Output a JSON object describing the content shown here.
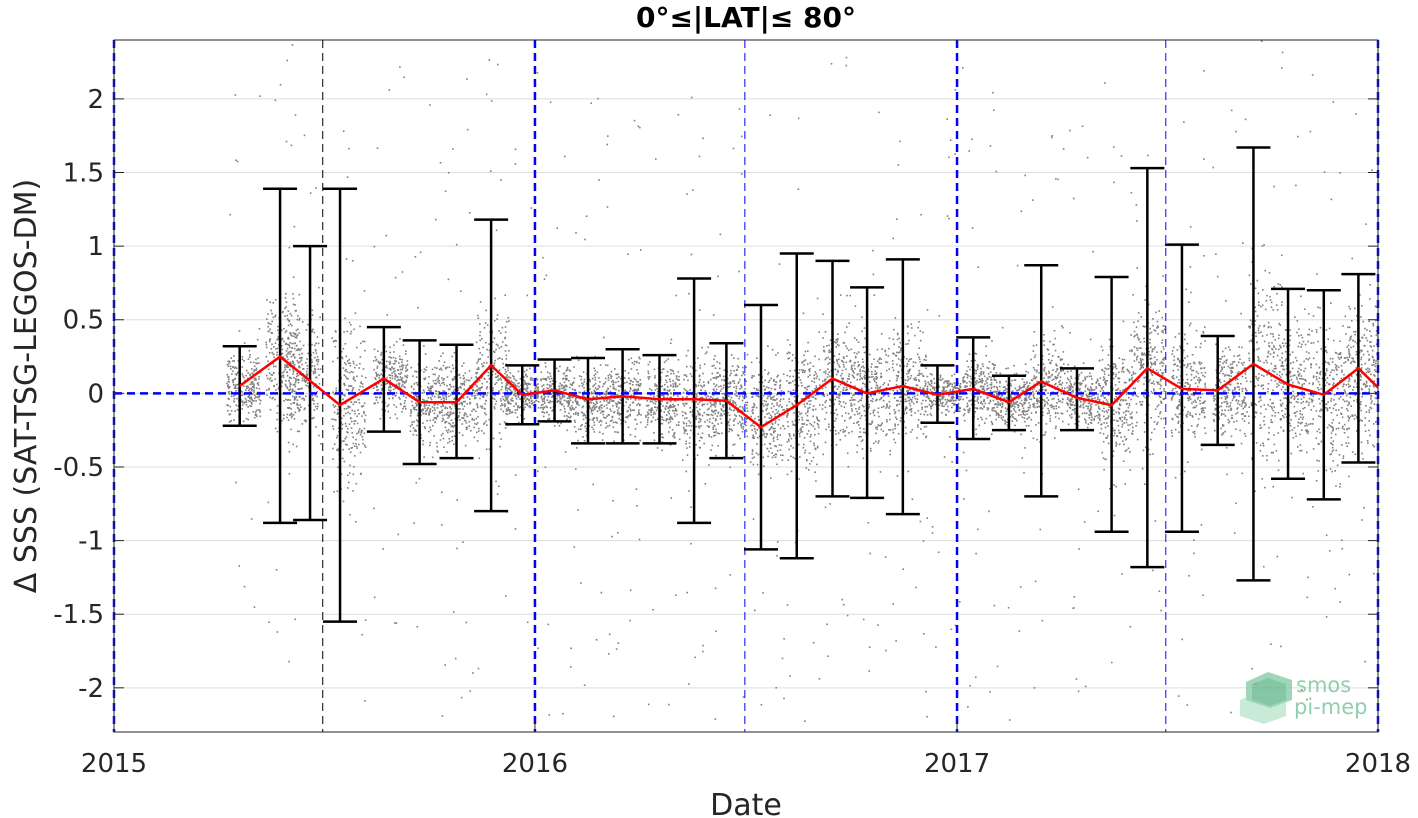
{
  "chart_data": {
    "type": "scatter",
    "title": "0°≤|LAT|≤ 80°",
    "xlabel": "Date",
    "ylabel": "Δ SSS (SAT-TSG-LEGOS-DM)",
    "xlim": [
      "2015-01-01",
      "2018-01-01"
    ],
    "ylim": [
      -2.3,
      2.4
    ],
    "grid": true,
    "x_ticks": [
      {
        "date": "2015-01-01",
        "label": "2015"
      },
      {
        "date": "2016-01-01",
        "label": "2016"
      },
      {
        "date": "2017-01-01",
        "label": "2017"
      },
      {
        "date": "2018-01-01",
        "label": "2018"
      }
    ],
    "y_ticks": [
      {
        "value": 2,
        "label": "2"
      },
      {
        "value": 1.5,
        "label": "1.5"
      },
      {
        "value": 1,
        "label": "1"
      },
      {
        "value": 0.5,
        "label": "0.5"
      },
      {
        "value": 0,
        "label": "0"
      },
      {
        "value": -0.5,
        "label": "-0.5"
      },
      {
        "value": -1,
        "label": "-1"
      },
      {
        "value": -1.5,
        "label": "-1.5"
      },
      {
        "value": -2,
        "label": "-2"
      }
    ],
    "year_lines": [
      "2015-01-01",
      "2016-01-01",
      "2017-01-01",
      "2018-01-01"
    ],
    "mid_year_lines": [
      "2015-07-01",
      "2016-07-01",
      "2017-07-01"
    ],
    "zero_line": 0,
    "colors": {
      "points": "#808080",
      "mean_line": "#ff0000",
      "error_bars": "#000000",
      "year_lines": "#0000ff",
      "zero_line": "#0000ff",
      "grid": "#dddddd"
    },
    "scatter_clusters": [
      {
        "date": "2015-04-23",
        "center": 0.05,
        "spread": 0.25
      },
      {
        "date": "2015-05-27",
        "center": 0.25,
        "spread": 0.45
      },
      {
        "date": "2015-06-14",
        "center": 0.1,
        "spread": 0.4
      },
      {
        "date": "2015-07-23",
        "center": -0.05,
        "spread": 0.6
      },
      {
        "date": "2015-08-28",
        "center": 0.1,
        "spread": 0.25
      },
      {
        "date": "2015-09-29",
        "center": -0.05,
        "spread": 0.3
      },
      {
        "date": "2015-10-28",
        "center": -0.05,
        "spread": 0.3
      },
      {
        "date": "2015-11-25",
        "center": 0.1,
        "spread": 0.45
      },
      {
        "date": "2015-12-20",
        "center": 0.0,
        "spread": 0.15
      },
      {
        "date": "2016-01-20",
        "center": 0.0,
        "spread": 0.2
      },
      {
        "date": "2016-02-18",
        "center": -0.05,
        "spread": 0.25
      },
      {
        "date": "2016-03-18",
        "center": -0.02,
        "spread": 0.25
      },
      {
        "date": "2016-04-20",
        "center": -0.04,
        "spread": 0.3
      },
      {
        "date": "2016-05-22",
        "center": -0.05,
        "spread": 0.35
      },
      {
        "date": "2016-06-18",
        "center": -0.05,
        "spread": 0.3
      },
      {
        "date": "2016-07-20",
        "center": -0.15,
        "spread": 0.4
      },
      {
        "date": "2016-08-20",
        "center": -0.1,
        "spread": 0.45
      },
      {
        "date": "2016-09-20",
        "center": 0.1,
        "spread": 0.45
      },
      {
        "date": "2016-10-20",
        "center": 0.0,
        "spread": 0.4
      },
      {
        "date": "2016-11-20",
        "center": 0.05,
        "spread": 0.4
      },
      {
        "date": "2016-12-20",
        "center": 0.0,
        "spread": 0.15
      },
      {
        "date": "2017-01-20",
        "center": 0.02,
        "spread": 0.25
      },
      {
        "date": "2017-02-18",
        "center": -0.05,
        "spread": 0.2
      },
      {
        "date": "2017-03-20",
        "center": 0.05,
        "spread": 0.35
      },
      {
        "date": "2017-04-20",
        "center": -0.03,
        "spread": 0.2
      },
      {
        "date": "2017-05-18",
        "center": -0.05,
        "spread": 0.45
      },
      {
        "date": "2017-06-15",
        "center": 0.15,
        "spread": 0.5
      },
      {
        "date": "2017-07-20",
        "center": 0.05,
        "spread": 0.4
      },
      {
        "date": "2017-08-25",
        "center": 0.0,
        "spread": 0.35
      },
      {
        "date": "2017-09-25",
        "center": 0.2,
        "spread": 0.7
      },
      {
        "date": "2017-10-22",
        "center": 0.05,
        "spread": 0.5
      },
      {
        "date": "2017-11-22",
        "center": 0.0,
        "spread": 0.6
      },
      {
        "date": "2017-12-20",
        "center": 0.15,
        "spread": 0.5
      }
    ],
    "series": [
      {
        "kind": "mean",
        "x": [
          "2015-04-20",
          "2015-05-25",
          "2015-07-16",
          "2015-08-23",
          "2015-09-23",
          "2015-10-25",
          "2015-11-24",
          "2015-12-21",
          "2016-01-18",
          "2016-02-16",
          "2016-03-17",
          "2016-04-18",
          "2016-05-18",
          "2016-06-15",
          "2016-07-15",
          "2016-08-15",
          "2016-09-15",
          "2016-10-15",
          "2016-11-15",
          "2016-12-15",
          "2017-01-15",
          "2017-02-15",
          "2017-03-15",
          "2017-04-15",
          "2017-05-15",
          "2017-06-15",
          "2017-07-15",
          "2017-08-15",
          "2017-09-15",
          "2017-10-15",
          "2017-11-15",
          "2017-12-15",
          "2018-01-01"
        ],
        "y": [
          0.05,
          0.25,
          -0.08,
          0.1,
          -0.06,
          -0.06,
          0.19,
          -0.01,
          0.02,
          -0.04,
          -0.02,
          -0.04,
          -0.04,
          -0.05,
          -0.23,
          -0.08,
          0.1,
          0.0,
          0.05,
          -0.01,
          0.03,
          -0.06,
          0.08,
          -0.03,
          -0.08,
          0.17,
          0.03,
          0.02,
          0.2,
          0.06,
          -0.01,
          0.17,
          0.04
        ]
      },
      {
        "kind": "errorbar",
        "x": [
          "2015-04-20",
          "2015-05-25",
          "2015-06-20",
          "2015-07-16",
          "2015-08-23",
          "2015-09-23",
          "2015-10-25",
          "2015-11-24",
          "2015-12-21",
          "2016-01-18",
          "2016-02-16",
          "2016-03-17",
          "2016-04-18",
          "2016-05-18",
          "2016-06-15",
          "2016-07-15",
          "2016-08-15",
          "2016-09-15",
          "2016-10-15",
          "2016-11-15",
          "2016-12-15",
          "2017-01-15",
          "2017-02-15",
          "2017-03-15",
          "2017-04-15",
          "2017-05-15",
          "2017-06-15",
          "2017-07-15",
          "2017-08-15",
          "2017-09-15",
          "2017-10-15",
          "2017-11-15",
          "2017-12-15"
        ],
        "upper": [
          0.32,
          1.39,
          1.0,
          1.39,
          0.45,
          0.36,
          0.33,
          1.18,
          0.19,
          0.23,
          0.24,
          0.3,
          0.26,
          0.78,
          0.34,
          0.6,
          0.95,
          0.9,
          0.72,
          0.91,
          0.19,
          0.38,
          0.12,
          0.87,
          0.17,
          0.79,
          1.53,
          1.01,
          0.39,
          1.67,
          0.71,
          0.7,
          0.81
        ],
        "lower": [
          -0.22,
          -0.88,
          -0.86,
          -1.55,
          -0.26,
          -0.48,
          -0.44,
          -0.8,
          -0.21,
          -0.19,
          -0.34,
          -0.34,
          -0.34,
          -0.88,
          -0.44,
          -1.06,
          -1.12,
          -0.7,
          -0.71,
          -0.82,
          -0.2,
          -0.31,
          -0.25,
          -0.7,
          -0.25,
          -0.94,
          -1.18,
          -0.94,
          -0.35,
          -1.27,
          -0.58,
          -0.72,
          -0.47
        ]
      }
    ]
  },
  "logo": {
    "line1": "smos",
    "line2": "pi-mep",
    "color": "#8fcfad"
  }
}
